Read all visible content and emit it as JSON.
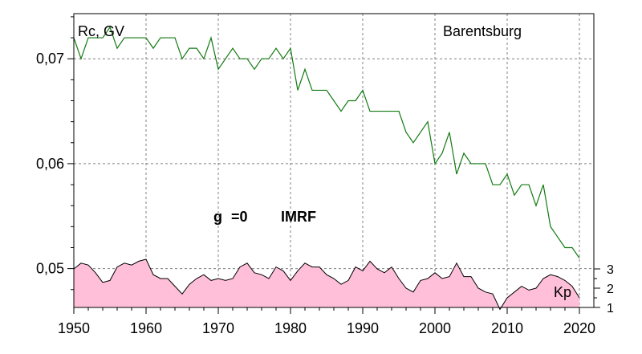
{
  "colors": {
    "rc_line": "#117a11",
    "kp_fill": "#ffbfd9",
    "kp_line": "#000000",
    "grid": "#808080",
    "frame": "#000000"
  },
  "chart_data": {
    "type": "line",
    "title": "",
    "annotations": {
      "ylabel": "Rc, GV",
      "station": "Barentsburg",
      "g_label": "g",
      "g_value": "=0",
      "model": "IMRF",
      "kp_label": "Kp"
    },
    "x_ticks": [
      "1950",
      "1960",
      "1970",
      "1980",
      "1990",
      "2000",
      "2010",
      "2020"
    ],
    "x_tick_values": [
      1950,
      1960,
      1970,
      1980,
      1990,
      2000,
      2010,
      2020
    ],
    "xlim": [
      1950,
      2022
    ],
    "y_ticks": [
      "0,05",
      "0,06",
      "0,07"
    ],
    "y_tick_values": [
      0.05,
      0.06,
      0.07
    ],
    "ylim": [
      0.0463,
      0.0743
    ],
    "kp_ticks": [
      "1",
      "2",
      "3"
    ],
    "kp_tick_values": [
      1,
      2,
      3
    ],
    "kp_axis_range": [
      1,
      3
    ],
    "grid": true,
    "series": [
      {
        "key": "rc",
        "x": [
          1950,
          1951,
          1952,
          1953,
          1954,
          1955,
          1956,
          1957,
          1958,
          1959,
          1960,
          1961,
          1962,
          1963,
          1964,
          1965,
          1966,
          1967,
          1968,
          1969,
          1970,
          1971,
          1972,
          1973,
          1974,
          1975,
          1976,
          1977,
          1978,
          1979,
          1980,
          1981,
          1982,
          1983,
          1984,
          1985,
          1986,
          1987,
          1988,
          1989,
          1990,
          1991,
          1992,
          1993,
          1994,
          1995,
          1996,
          1997,
          1998,
          1999,
          2000,
          2001,
          2002,
          2003,
          2004,
          2005,
          2006,
          2007,
          2008,
          2009,
          2010,
          2011,
          2012,
          2013,
          2014,
          2015,
          2016,
          2017,
          2018,
          2019,
          2020
        ],
        "values": [
          0.072,
          0.07,
          0.072,
          0.072,
          0.072,
          0.073,
          0.071,
          0.072,
          0.072,
          0.072,
          0.072,
          0.071,
          0.072,
          0.072,
          0.072,
          0.07,
          0.071,
          0.071,
          0.07,
          0.072,
          0.069,
          0.07,
          0.071,
          0.07,
          0.07,
          0.069,
          0.07,
          0.07,
          0.071,
          0.07,
          0.071,
          0.067,
          0.069,
          0.067,
          0.067,
          0.067,
          0.066,
          0.065,
          0.066,
          0.066,
          0.067,
          0.065,
          0.065,
          0.065,
          0.065,
          0.065,
          0.063,
          0.062,
          0.063,
          0.064,
          0.06,
          0.061,
          0.063,
          0.059,
          0.061,
          0.06,
          0.06,
          0.06,
          0.058,
          0.058,
          0.059,
          0.057,
          0.058,
          0.058,
          0.056,
          0.058,
          0.054,
          0.053,
          0.052,
          0.052,
          0.051
        ]
      },
      {
        "key": "kp",
        "name": "Kp",
        "x": [
          1950,
          1951,
          1952,
          1953,
          1954,
          1955,
          1956,
          1957,
          1958,
          1959,
          1960,
          1961,
          1962,
          1963,
          1964,
          1965,
          1966,
          1967,
          1968,
          1969,
          1970,
          1971,
          1972,
          1973,
          1974,
          1975,
          1976,
          1977,
          1978,
          1979,
          1980,
          1981,
          1982,
          1983,
          1984,
          1985,
          1986,
          1987,
          1988,
          1989,
          1990,
          1991,
          1992,
          1993,
          1994,
          1995,
          1996,
          1997,
          1998,
          1999,
          2000,
          2001,
          2002,
          2003,
          2004,
          2005,
          2006,
          2007,
          2008,
          2009,
          2010,
          2011,
          2012,
          2013,
          2014,
          2015,
          2016,
          2017,
          2018,
          2019,
          2020
        ],
        "values": [
          3.0,
          3.3,
          3.2,
          2.8,
          2.3,
          2.4,
          3.1,
          3.3,
          3.2,
          3.4,
          3.5,
          2.7,
          2.5,
          2.5,
          2.1,
          1.7,
          2.2,
          2.5,
          2.7,
          2.4,
          2.5,
          2.4,
          2.5,
          3.1,
          3.3,
          2.8,
          2.7,
          2.5,
          3.1,
          2.9,
          2.4,
          2.9,
          3.3,
          3.1,
          3.1,
          2.7,
          2.5,
          2.2,
          2.4,
          3.1,
          2.9,
          3.4,
          3.0,
          2.8,
          3.1,
          2.5,
          2.0,
          1.8,
          2.4,
          2.5,
          2.8,
          2.5,
          2.6,
          3.3,
          2.6,
          2.6,
          2.0,
          1.8,
          1.7,
          0.9,
          1.5,
          1.8,
          2.1,
          1.9,
          2.0,
          2.5,
          2.7,
          2.6,
          2.4,
          2.1,
          1.5
        ]
      }
    ]
  }
}
